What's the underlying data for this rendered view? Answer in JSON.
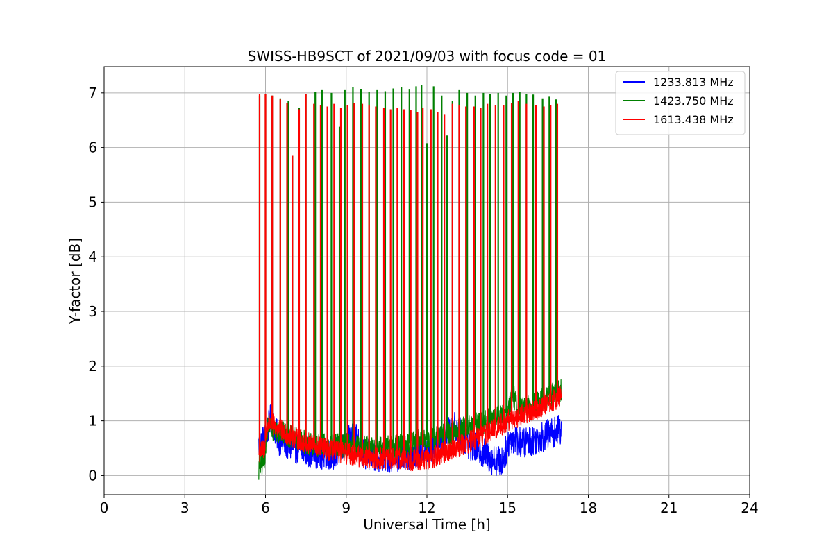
{
  "chart_data": {
    "type": "line",
    "title": "SWISS-HB9SCT of 2021/09/03 with focus code = 01",
    "xlabel": "Universal Time [h]",
    "ylabel": "Y-factor [dB]",
    "xlim": [
      0,
      24
    ],
    "ylim": [
      -0.35,
      7.48
    ],
    "xticks": [
      0,
      3,
      6,
      9,
      12,
      15,
      18,
      21,
      24
    ],
    "xtick_labels": [
      "0",
      "3",
      "6",
      "9",
      "12",
      "15",
      "18",
      "21",
      "24"
    ],
    "yticks": [
      0,
      1,
      2,
      3,
      4,
      5,
      6,
      7
    ],
    "ytick_labels": [
      "0",
      "1",
      "2",
      "3",
      "4",
      "5",
      "6",
      "7"
    ],
    "grid": true,
    "legend_position": "top-right",
    "series": [
      {
        "name": "1233.813 MHz",
        "color": "#0000ff",
        "baseline": [
          [
            5.75,
            0.55
          ],
          [
            6.0,
            0.7
          ],
          [
            6.2,
            1.05
          ],
          [
            6.5,
            0.65
          ],
          [
            7.0,
            0.52
          ],
          [
            7.5,
            0.45
          ],
          [
            8.0,
            0.4
          ],
          [
            8.5,
            0.38
          ],
          [
            9.0,
            0.55
          ],
          [
            9.3,
            0.8
          ],
          [
            9.6,
            0.42
          ],
          [
            10.0,
            0.35
          ],
          [
            10.5,
            0.33
          ],
          [
            11.0,
            0.36
          ],
          [
            11.5,
            0.4
          ],
          [
            12.0,
            0.45
          ],
          [
            12.5,
            0.6
          ],
          [
            13.0,
            0.9
          ],
          [
            13.3,
            0.75
          ],
          [
            13.6,
            0.55
          ],
          [
            14.0,
            0.45
          ],
          [
            14.4,
            0.3
          ],
          [
            14.8,
            0.25
          ],
          [
            15.1,
            0.7
          ],
          [
            15.5,
            0.6
          ],
          [
            16.0,
            0.65
          ],
          [
            16.5,
            0.75
          ],
          [
            17.0,
            0.85
          ]
        ],
        "spikes": [],
        "noise_amplitude": 0.28
      },
      {
        "name": "1423.750 MHz",
        "color": "#008000",
        "baseline": [
          [
            5.75,
            0.1
          ],
          [
            5.95,
            0.3
          ],
          [
            6.1,
            0.95
          ],
          [
            6.3,
            0.85
          ],
          [
            7.0,
            0.7
          ],
          [
            7.5,
            0.6
          ],
          [
            8.0,
            0.55
          ],
          [
            8.5,
            0.55
          ],
          [
            9.0,
            0.55
          ],
          [
            9.5,
            0.52
          ],
          [
            10.0,
            0.5
          ],
          [
            10.5,
            0.52
          ],
          [
            11.0,
            0.55
          ],
          [
            11.5,
            0.6
          ],
          [
            12.0,
            0.65
          ],
          [
            12.5,
            0.72
          ],
          [
            13.0,
            0.8
          ],
          [
            13.5,
            0.88
          ],
          [
            14.0,
            0.95
          ],
          [
            14.5,
            1.05
          ],
          [
            15.0,
            1.15
          ],
          [
            15.2,
            1.5
          ],
          [
            15.4,
            1.2
          ],
          [
            16.0,
            1.3
          ],
          [
            16.5,
            1.45
          ],
          [
            17.0,
            1.55
          ]
        ],
        "spikes": [
          [
            5.78,
            6.95
          ],
          [
            6.0,
            6.98
          ],
          [
            6.25,
            6.95
          ],
          [
            6.55,
            6.9
          ],
          [
            6.85,
            6.85
          ],
          [
            7.0,
            5.85
          ],
          [
            7.25,
            6.72
          ],
          [
            7.5,
            6.98
          ],
          [
            7.85,
            7.02
          ],
          [
            8.1,
            7.05
          ],
          [
            8.45,
            7.0
          ],
          [
            8.75,
            6.38
          ],
          [
            8.95,
            7.05
          ],
          [
            9.25,
            7.1
          ],
          [
            9.55,
            7.07
          ],
          [
            9.85,
            7.02
          ],
          [
            10.15,
            7.05
          ],
          [
            10.45,
            7.03
          ],
          [
            10.75,
            7.08
          ],
          [
            11.05,
            7.1
          ],
          [
            11.35,
            7.06
          ],
          [
            11.6,
            7.12
          ],
          [
            11.8,
            7.15
          ],
          [
            12.0,
            6.08
          ],
          [
            12.25,
            7.12
          ],
          [
            12.55,
            6.95
          ],
          [
            12.75,
            6.22
          ],
          [
            12.95,
            6.85
          ],
          [
            13.2,
            7.05
          ],
          [
            13.5,
            7.0
          ],
          [
            13.8,
            6.95
          ],
          [
            14.1,
            7.0
          ],
          [
            14.35,
            6.98
          ],
          [
            14.65,
            7.0
          ],
          [
            14.95,
            6.95
          ],
          [
            15.2,
            7.0
          ],
          [
            15.45,
            7.02
          ],
          [
            15.7,
            6.98
          ],
          [
            15.95,
            6.97
          ],
          [
            16.3,
            6.9
          ],
          [
            16.55,
            6.93
          ],
          [
            16.8,
            6.88
          ]
        ],
        "noise_amplitude": 0.22
      },
      {
        "name": "1613.438 MHz",
        "color": "#ff0000",
        "baseline": [
          [
            5.75,
            0.4
          ],
          [
            5.95,
            0.5
          ],
          [
            6.1,
            0.98
          ],
          [
            6.5,
            0.85
          ],
          [
            7.0,
            0.7
          ],
          [
            7.5,
            0.6
          ],
          [
            8.0,
            0.52
          ],
          [
            8.5,
            0.45
          ],
          [
            9.0,
            0.4
          ],
          [
            9.5,
            0.35
          ],
          [
            10.0,
            0.32
          ],
          [
            10.5,
            0.3
          ],
          [
            11.0,
            0.3
          ],
          [
            11.5,
            0.28
          ],
          [
            12.0,
            0.3
          ],
          [
            12.5,
            0.38
          ],
          [
            13.0,
            0.5
          ],
          [
            13.5,
            0.6
          ],
          [
            14.0,
            0.72
          ],
          [
            14.5,
            0.85
          ],
          [
            15.0,
            1.0
          ],
          [
            15.5,
            1.1
          ],
          [
            16.0,
            1.2
          ],
          [
            16.5,
            1.32
          ],
          [
            17.0,
            1.45
          ]
        ],
        "spikes": [
          [
            5.78,
            6.98
          ],
          [
            6.0,
            6.98
          ],
          [
            6.25,
            6.95
          ],
          [
            6.55,
            6.88
          ],
          [
            6.8,
            6.82
          ],
          [
            7.0,
            5.85
          ],
          [
            7.25,
            6.7
          ],
          [
            7.5,
            6.98
          ],
          [
            7.8,
            6.8
          ],
          [
            8.05,
            6.78
          ],
          [
            8.3,
            6.75
          ],
          [
            8.55,
            6.8
          ],
          [
            8.8,
            6.72
          ],
          [
            9.05,
            6.78
          ],
          [
            9.3,
            6.82
          ],
          [
            9.6,
            6.8
          ],
          [
            9.85,
            6.78
          ],
          [
            10.1,
            6.75
          ],
          [
            10.4,
            6.72
          ],
          [
            10.65,
            6.7
          ],
          [
            10.9,
            6.72
          ],
          [
            11.15,
            6.7
          ],
          [
            11.4,
            6.68
          ],
          [
            11.65,
            6.65
          ],
          [
            11.85,
            6.72
          ],
          [
            12.15,
            6.7
          ],
          [
            12.4,
            6.65
          ],
          [
            12.65,
            6.6
          ],
          [
            12.95,
            6.8
          ],
          [
            13.2,
            6.78
          ],
          [
            13.45,
            6.75
          ],
          [
            13.75,
            6.75
          ],
          [
            14.0,
            6.72
          ],
          [
            14.25,
            6.8
          ],
          [
            14.55,
            6.78
          ],
          [
            14.85,
            6.78
          ],
          [
            15.15,
            6.82
          ],
          [
            15.4,
            6.85
          ],
          [
            15.7,
            6.8
          ],
          [
            16.05,
            6.78
          ],
          [
            16.35,
            6.75
          ],
          [
            16.6,
            6.78
          ],
          [
            16.85,
            6.8
          ]
        ],
        "noise_amplitude": 0.2
      }
    ]
  }
}
